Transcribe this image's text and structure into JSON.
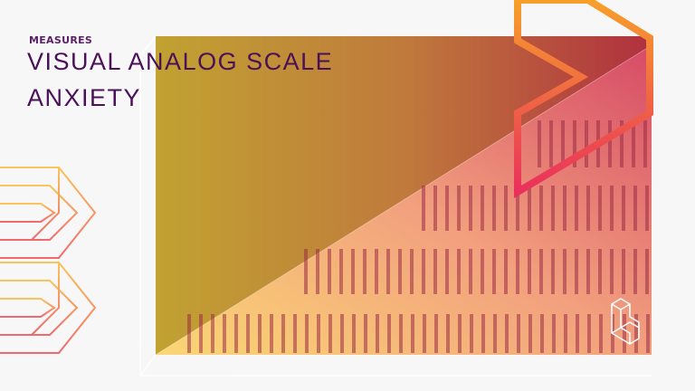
{
  "header": {
    "kicker": "MEASURES",
    "title_line1": "VISUAL ANALOG SCALE",
    "title_line2": "ANXIETY"
  },
  "logo": {
    "name": "b-cube-logo-icon"
  },
  "colors": {
    "title": "#4a1158",
    "kicker": "#5a1f66",
    "gradient_top_left": "#c1a232",
    "gradient_top_right": "#b0303f",
    "gradient_bottom_left": "#fbd774",
    "gradient_bottom_right": "#cf3a5a",
    "accent_orange": "#f59a2c",
    "accent_pink": "#e9305a"
  }
}
